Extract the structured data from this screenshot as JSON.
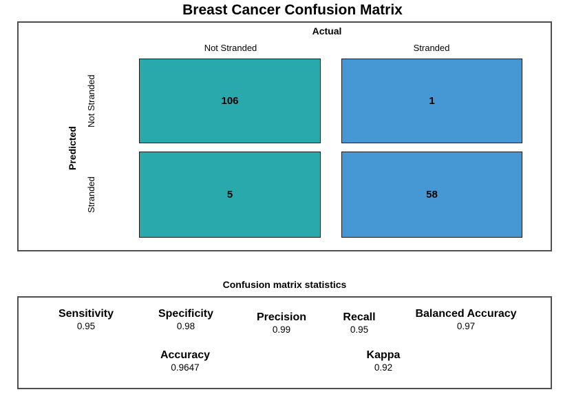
{
  "title": "Breast Cancer Confusion Matrix",
  "matrix": {
    "x_axis_title": "Actual",
    "y_axis_title": "Predicted",
    "col_labels": [
      "Not Stranded",
      "Stranded"
    ],
    "row_labels": [
      "Not Stranded",
      "Stranded"
    ],
    "cells": [
      [
        "106",
        "1"
      ],
      [
        "5",
        "58"
      ]
    ],
    "colors": {
      "not_stranded_col": "#2AA9AD",
      "stranded_col": "#4598D3",
      "cell_border": "#1A1A1A",
      "panel_border": "#4E4E4E"
    }
  },
  "stats": {
    "header": "Confusion matrix statistics",
    "row1": [
      {
        "label": "Sensitivity",
        "value": "0.95"
      },
      {
        "label": "Specificity",
        "value": "0.98"
      },
      {
        "label": "Precision",
        "value": "0.99"
      },
      {
        "label": "Recall",
        "value": "0.95"
      },
      {
        "label": "Balanced Accuracy",
        "value": "0.97"
      }
    ],
    "row2": [
      {
        "label": "Accuracy",
        "value": "0.9647"
      },
      {
        "label": "Kappa",
        "value": "0.92"
      }
    ]
  },
  "chart_data": {
    "type": "heatmap",
    "title": "Breast Cancer Confusion Matrix",
    "xlabel": "Actual",
    "ylabel": "Predicted",
    "x_categories": [
      "Not Stranded",
      "Stranded"
    ],
    "y_categories": [
      "Not Stranded",
      "Stranded"
    ],
    "values": [
      [
        106,
        1
      ],
      [
        5,
        58
      ]
    ],
    "cell_colors": [
      [
        "#2AA9AD",
        "#4598D3"
      ],
      [
        "#2AA9AD",
        "#4598D3"
      ]
    ],
    "legend_position": "none",
    "grid": false,
    "statistics": {
      "Sensitivity": 0.95,
      "Specificity": 0.98,
      "Precision": 0.99,
      "Recall": 0.95,
      "Balanced Accuracy": 0.97,
      "Accuracy": 0.9647,
      "Kappa": 0.92
    }
  }
}
